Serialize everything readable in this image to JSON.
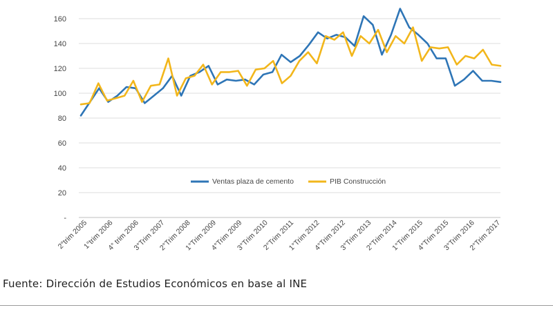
{
  "chart_data": {
    "type": "line",
    "ylim": [
      0,
      160
    ],
    "yticks": [
      0,
      20,
      40,
      60,
      80,
      100,
      120,
      140,
      160
    ],
    "ytick_labels": [
      "-",
      "20",
      "40",
      "60",
      "80",
      "100",
      "120",
      "140",
      "160"
    ],
    "xtick_labels": [
      "2°trim 2005",
      "1°trim 2006",
      "4° trim 2006",
      "3°Trim 2007",
      "2°Trim 2008",
      "1°Trim 2009",
      "4°Trim 2009",
      "3°Trim 2010",
      "2°Trim 2011",
      "1°Trim 2012",
      "4°Trim 2012",
      "3°Trim 2013",
      "2°Trim 2014",
      "1°Trim 2015",
      "4°Trim 2015",
      "3°Trim 2016",
      "2°Trim 2017"
    ],
    "grid": true,
    "legend_position": "center",
    "series": [
      {
        "name": "Ventas plaza de cemento",
        "color": "#2e75b6",
        "values": [
          82,
          93,
          104,
          93,
          98,
          105,
          104,
          92,
          98,
          104,
          114,
          98,
          114,
          117,
          122,
          107,
          111,
          110,
          111,
          107,
          115,
          117,
          131,
          125,
          130,
          139,
          149,
          144,
          147,
          145,
          138,
          162,
          155,
          131,
          147,
          168,
          153,
          147,
          140,
          128,
          128,
          106,
          111,
          118,
          110,
          110,
          109
        ]
      },
      {
        "name": "PIB Construcción",
        "color": "#f2b61b",
        "values": [
          91,
          92,
          108,
          94,
          96,
          98,
          110,
          93,
          106,
          107,
          128,
          98,
          112,
          114,
          123,
          107,
          117,
          117,
          118,
          106,
          119,
          120,
          126,
          108,
          114,
          126,
          133,
          124,
          146,
          143,
          149,
          130,
          146,
          140,
          151,
          133,
          146,
          140,
          153,
          126,
          137,
          136,
          137,
          123,
          130,
          128,
          135,
          123,
          122
        ]
      }
    ]
  },
  "source_text": "Fuente: Dirección de Estudios Económicos en base al INE"
}
